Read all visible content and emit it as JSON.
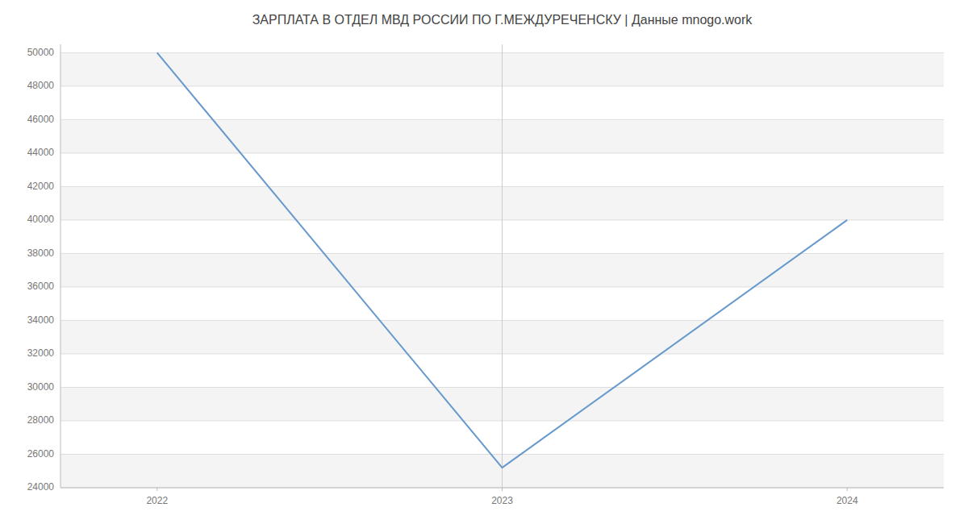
{
  "chart_data": {
    "type": "line",
    "title": "ЗАРПЛАТА В ОТДЕЛ МВД РОССИИ ПО Г.МЕЖДУРЕЧЕНСКУ | Данные mnogo.work",
    "x": [
      2022,
      2023,
      2024
    ],
    "values": [
      50000,
      25200,
      40000
    ],
    "color": "#6699cc",
    "xlim": [
      2021.72,
      2024.28
    ],
    "ylim": [
      24000,
      50500
    ],
    "xticks": [
      2022,
      2023,
      2024
    ],
    "yticks": [
      24000,
      26000,
      28000,
      30000,
      32000,
      34000,
      36000,
      38000,
      40000,
      42000,
      44000,
      46000,
      48000,
      50000
    ],
    "vlines": [
      2023
    ],
    "grid": true
  }
}
